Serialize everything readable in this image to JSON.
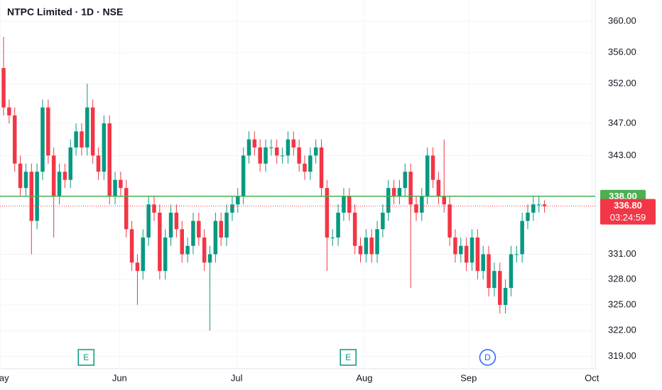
{
  "chart_data": {
    "type": "candlestick",
    "title": "NTPC Limited · 1D · NSE",
    "categories": [
      null,
      null,
      null,
      null,
      null,
      null,
      null,
      null,
      null,
      null,
      null,
      null,
      null,
      null,
      null,
      null,
      null,
      null,
      null,
      null,
      null,
      null,
      null,
      null,
      null,
      null,
      null,
      null,
      null,
      null,
      null,
      null,
      null,
      null,
      null,
      null,
      null,
      null,
      null,
      null,
      null,
      null,
      null,
      null,
      null,
      null,
      null,
      null,
      null,
      null,
      null,
      null,
      null,
      null,
      null,
      null,
      null,
      null,
      null,
      null,
      null,
      null,
      null,
      null,
      null,
      null,
      null,
      null,
      null,
      null,
      null,
      null,
      null,
      null,
      null,
      null,
      null,
      null,
      null,
      null,
      null,
      null,
      null,
      null,
      null,
      null,
      null,
      null,
      null,
      null,
      null,
      null,
      null,
      null,
      null,
      null,
      null,
      null
    ],
    "open": [
      354,
      349,
      348,
      342,
      339,
      341,
      335,
      341,
      349,
      343,
      338,
      341,
      340,
      344,
      346,
      344,
      349,
      343,
      341,
      347,
      338,
      340,
      339,
      334,
      330,
      329,
      333,
      337,
      336,
      329,
      333,
      336,
      334,
      331,
      332,
      335,
      333,
      330,
      331,
      335,
      333,
      336,
      337,
      338,
      343,
      345,
      344,
      342,
      344,
      344,
      343,
      343,
      345,
      344,
      342,
      341,
      343,
      344,
      339,
      333,
      333,
      336,
      338,
      336,
      332,
      331,
      333,
      331,
      334,
      336,
      339,
      338,
      339,
      341,
      337,
      336,
      338,
      343,
      340,
      338,
      337,
      333,
      331,
      332,
      330,
      333,
      329,
      331,
      327,
      329,
      325,
      327,
      331,
      331,
      335,
      336,
      337,
      337
    ],
    "high": [
      358,
      350,
      349,
      343,
      342,
      342,
      342,
      350,
      350,
      344,
      342,
      342,
      345,
      347,
      347,
      352,
      350,
      344,
      348,
      348,
      341,
      341,
      340,
      335,
      331,
      334,
      338,
      338,
      337,
      334,
      337,
      337,
      335,
      333,
      336,
      336,
      334,
      332,
      336,
      336,
      337,
      338,
      339,
      344,
      346,
      346,
      345,
      345,
      345,
      345,
      344,
      346,
      346,
      345,
      343,
      344,
      345,
      345,
      340,
      334,
      337,
      339,
      339,
      337,
      333,
      334,
      334,
      335,
      337,
      340,
      340,
      340,
      342,
      342,
      338,
      339,
      344,
      344,
      341,
      345,
      338,
      334,
      333,
      333,
      334,
      334,
      332,
      332,
      330,
      330,
      328,
      332,
      332,
      336,
      337,
      338,
      338,
      337.5
    ],
    "low": [
      348,
      347,
      341,
      338,
      338,
      331,
      334,
      340,
      342,
      333,
      337,
      339,
      339,
      343,
      343,
      343,
      342,
      340,
      340,
      337,
      337,
      338,
      333,
      329,
      325,
      328,
      332,
      335,
      328,
      328,
      332,
      333,
      330,
      330,
      331,
      332,
      329,
      322,
      330,
      332,
      332,
      335,
      336,
      337,
      342,
      343,
      341,
      341,
      343,
      342,
      342,
      342,
      343,
      341,
      340,
      340,
      342,
      338,
      329,
      332,
      332,
      335,
      335,
      331,
      330,
      330,
      330,
      330,
      333,
      335,
      337,
      337,
      338,
      327,
      335,
      335,
      337,
      339,
      337,
      336,
      332,
      330,
      330,
      329,
      329,
      328,
      328,
      326,
      326,
      324,
      324,
      326,
      330,
      330,
      334,
      335,
      336,
      336
    ],
    "close": [
      349,
      348,
      342,
      339,
      341,
      335,
      341,
      349,
      343,
      338,
      341,
      340,
      344,
      346,
      344,
      349,
      343,
      341,
      347,
      338,
      340,
      339,
      334,
      330,
      329,
      333,
      337,
      336,
      329,
      333,
      336,
      334,
      331,
      332,
      335,
      333,
      330,
      331,
      335,
      333,
      336,
      337,
      338,
      343,
      345,
      344,
      342,
      344,
      344,
      343,
      343,
      345,
      344,
      342,
      341,
      343,
      344,
      339,
      333,
      333,
      336,
      338,
      336,
      332,
      331,
      333,
      331,
      334,
      336,
      339,
      338,
      339,
      341,
      337,
      336,
      338,
      343,
      340,
      338,
      337,
      333,
      331,
      332,
      330,
      333,
      329,
      331,
      327,
      329,
      325,
      327,
      331,
      331,
      335,
      336,
      337,
      337,
      336.8
    ],
    "up_color": "#089981",
    "down_color": "#f23645",
    "log_scale": true,
    "grid": true,
    "ylim": [
      317.6,
      362.8
    ],
    "yticks": [
      {
        "value": 360,
        "label": "360.00"
      },
      {
        "value": 356,
        "label": "356.00"
      },
      {
        "value": 352,
        "label": "352.00"
      },
      {
        "value": 347,
        "label": "347.00"
      },
      {
        "value": 343,
        "label": "343.00"
      },
      {
        "value": 331,
        "label": "331.00"
      },
      {
        "value": 328,
        "label": "328.00"
      },
      {
        "value": 325,
        "label": "325.00"
      },
      {
        "value": 322,
        "label": "322.00"
      },
      {
        "value": 319,
        "label": "319.00"
      }
    ],
    "xlim": [
      -0.64,
      106.1
    ],
    "xticks": [
      {
        "value": -0.6,
        "label": "May"
      },
      {
        "value": 20.8,
        "label": "Jun"
      },
      {
        "value": 41.8,
        "label": "Jul"
      },
      {
        "value": 64.7,
        "label": "Aug"
      },
      {
        "value": 83.4,
        "label": "Sep"
      },
      {
        "value": 105.5,
        "label": "Oct"
      }
    ],
    "hline": {
      "value": 338,
      "label": "338.00",
      "color": "#4caf50"
    },
    "last_price": {
      "value": 336.8,
      "label": "336.80",
      "countdown": "03:24:59",
      "color": "#f23645"
    },
    "events": [
      {
        "x": 14.8,
        "label": "E",
        "color": "#089981"
      },
      {
        "x": 61.8,
        "label": "E",
        "color": "#089981"
      },
      {
        "x": 86.8,
        "label": "D",
        "color": "#2962ff"
      }
    ]
  }
}
